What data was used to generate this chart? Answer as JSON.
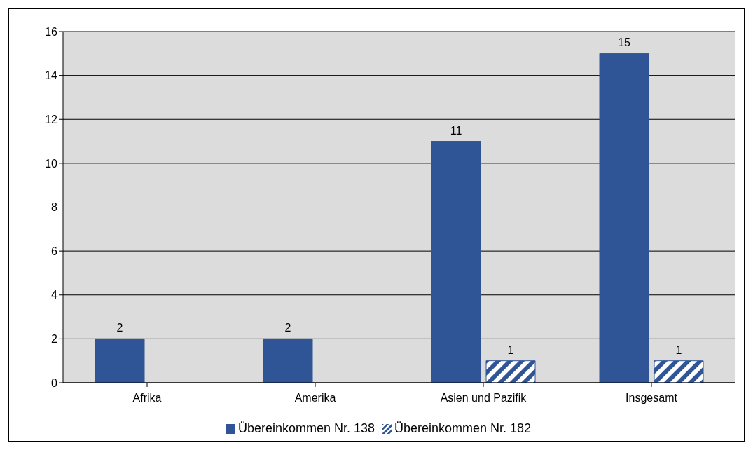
{
  "chart_data": {
    "type": "bar",
    "categories": [
      "Afrika",
      "Amerika",
      "Asien und Pazifik",
      "Insgesamt"
    ],
    "series": [
      {
        "name": "Übereinkommen Nr. 138",
        "color": "#2f5597",
        "values": [
          2,
          2,
          11,
          15
        ]
      },
      {
        "name": "Übereinkommen Nr. 182",
        "color": "#2f5597",
        "values": [
          null,
          null,
          1,
          1
        ]
      }
    ],
    "ylim": [
      0,
      16
    ],
    "yticks": [
      0,
      2,
      4,
      6,
      8,
      10,
      12,
      14,
      16
    ],
    "grid": "y",
    "legend": "bottom",
    "data_labels": true
  }
}
